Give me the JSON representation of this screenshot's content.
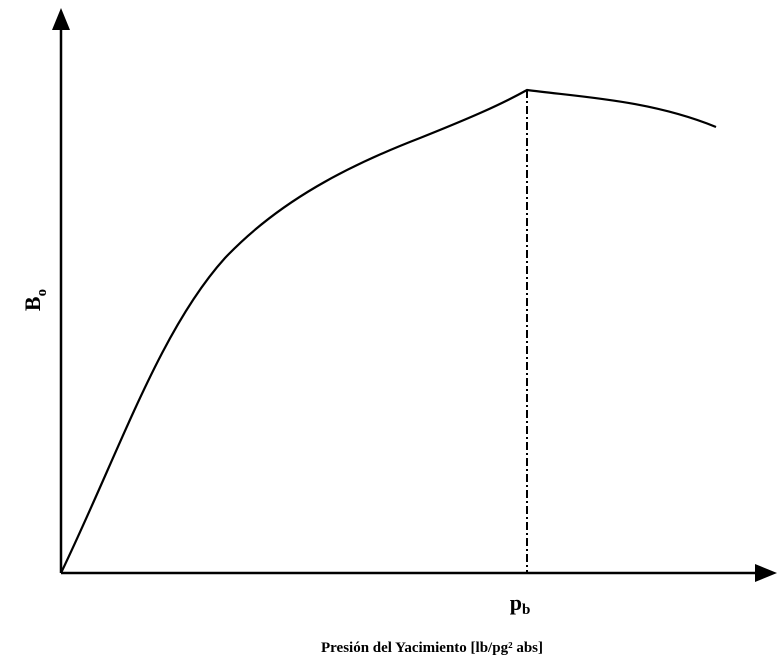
{
  "y_axis_label": {
    "symbol": "B",
    "subscript": "o"
  },
  "x_marker": {
    "symbol": "p",
    "subscript": "b"
  },
  "x_axis_label": "Presión del Yacimiento [lb/pg² abs]"
}
